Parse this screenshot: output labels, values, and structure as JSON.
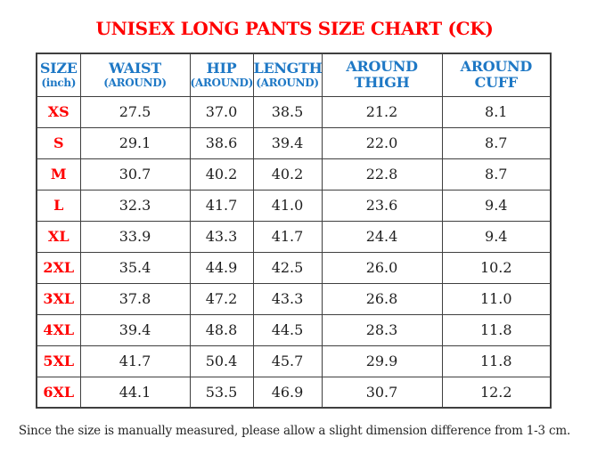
{
  "title": "UNISEX LONG PANTS SIZE CHART (CK)",
  "unit": "inch",
  "table": {
    "columns": [
      {
        "line1": "SIZE",
        "line2": "(inch)",
        "small_line2": true,
        "width": 49
      },
      {
        "line1": "WAIST",
        "line2": "(AROUND)",
        "small_line2": true,
        "width": 123
      },
      {
        "line1": "HIP",
        "line2": "(AROUND)",
        "small_line2": true,
        "width": 71
      },
      {
        "line1": "LENGTH",
        "line2": "(AROUND)",
        "small_line2": true,
        "width": 77
      },
      {
        "line1": "AROUND",
        "line2": "THIGH",
        "small_line2": false,
        "width": 135
      },
      {
        "line1": "AROUND",
        "line2": "CUFF",
        "small_line2": false,
        "width": 122
      }
    ],
    "rows": [
      {
        "size": "XS",
        "values": [
          "27.5",
          "37.0",
          "38.5",
          "21.2",
          "8.1"
        ]
      },
      {
        "size": "S",
        "values": [
          "29.1",
          "38.6",
          "39.4",
          "22.0",
          "8.7"
        ]
      },
      {
        "size": "M",
        "values": [
          "30.7",
          "40.2",
          "40.2",
          "22.8",
          "8.7"
        ]
      },
      {
        "size": "L",
        "values": [
          "32.3",
          "41.7",
          "41.0",
          "23.6",
          "9.4"
        ]
      },
      {
        "size": "XL",
        "values": [
          "33.9",
          "43.3",
          "41.7",
          "24.4",
          "9.4"
        ]
      },
      {
        "size": "2XL",
        "values": [
          "35.4",
          "44.9",
          "42.5",
          "26.0",
          "10.2"
        ]
      },
      {
        "size": "3XL",
        "values": [
          "37.8",
          "47.2",
          "43.3",
          "26.8",
          "11.0"
        ]
      },
      {
        "size": "4XL",
        "values": [
          "39.4",
          "48.8",
          "44.5",
          "28.3",
          "11.8"
        ]
      },
      {
        "size": "5XL",
        "values": [
          "41.7",
          "50.4",
          "45.7",
          "29.9",
          "11.8"
        ]
      },
      {
        "size": "6XL",
        "values": [
          "44.1",
          "53.5",
          "46.9",
          "30.7",
          "12.2"
        ]
      }
    ]
  },
  "footer_note": "Since the size is manually measured, please allow a slight dimension difference from 1-3 cm.",
  "colors": {
    "title_red": "#FF0000",
    "header_blue": "#1E78C5",
    "size_red": "#FF0000",
    "value_black": "#1F1F1F",
    "border": "#3F3F3F"
  }
}
